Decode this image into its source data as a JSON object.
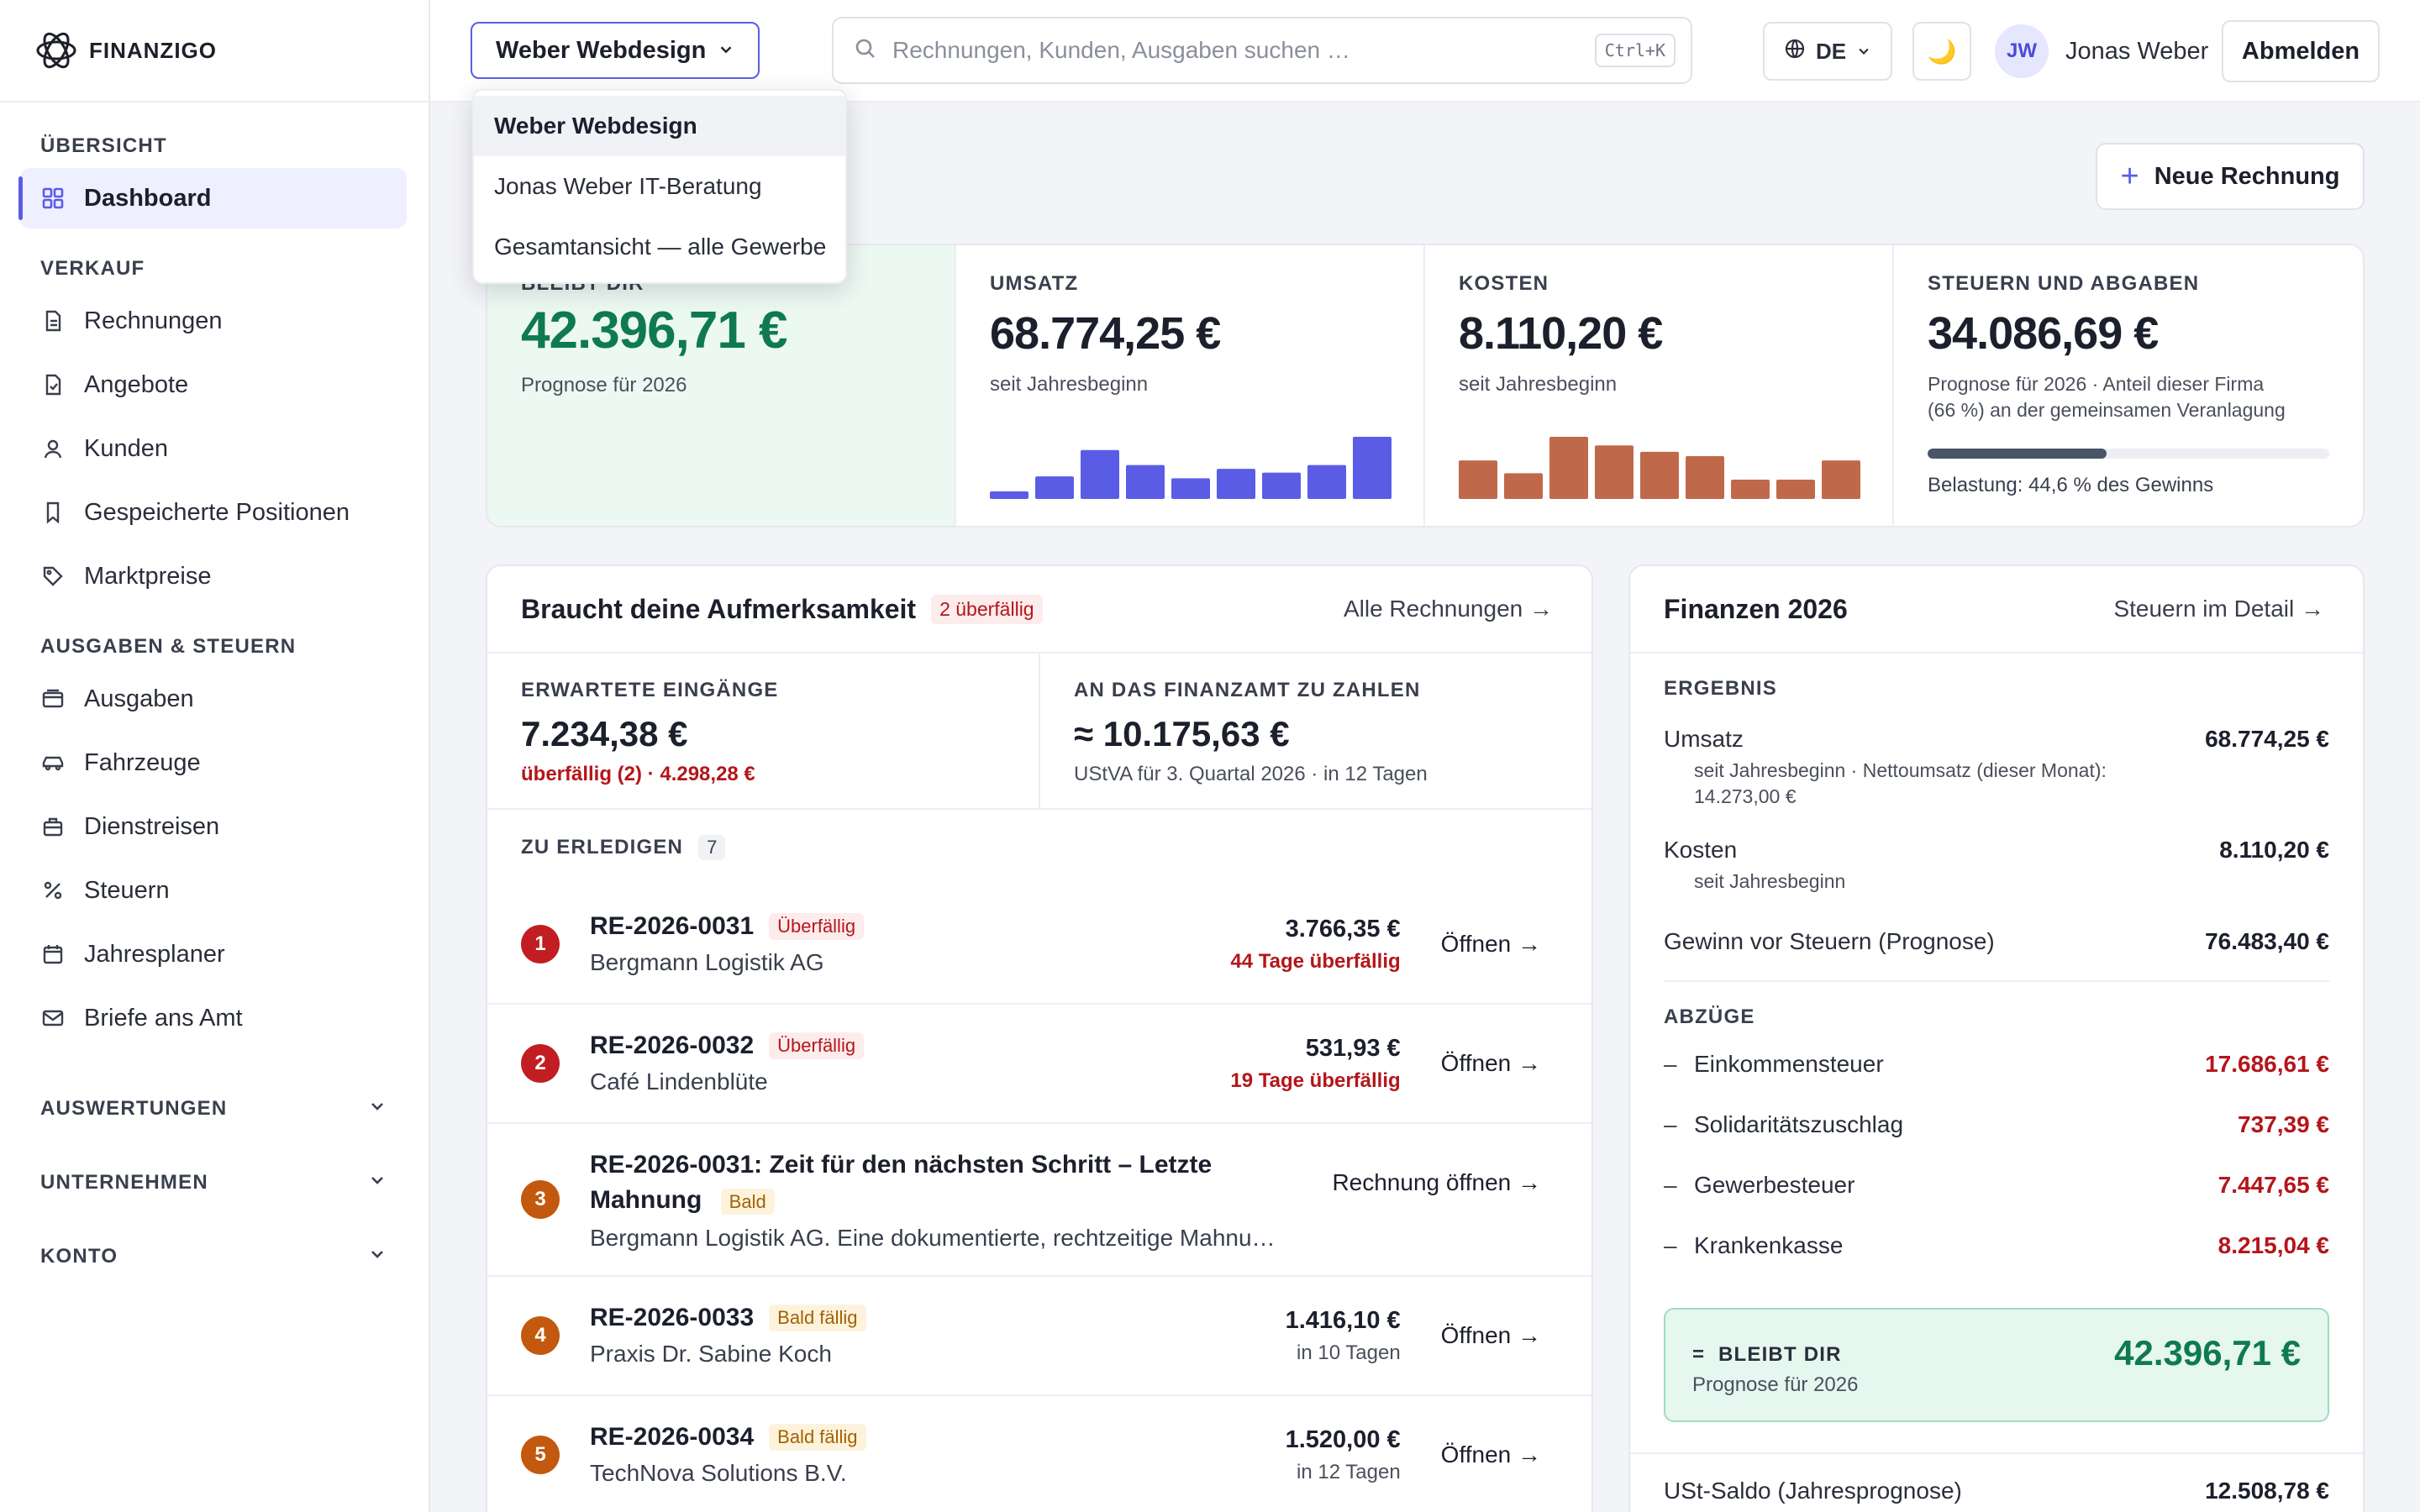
{
  "brand": {
    "name": "FINANZIGO"
  },
  "sidebar": {
    "sections": {
      "overview": "ÜBERSICHT",
      "sales": "VERKAUF",
      "expenses": "AUSGABEN & STEUERN"
    },
    "items": {
      "dashboard": "Dashboard",
      "invoices": "Rechnungen",
      "offers": "Angebote",
      "customers": "Kunden",
      "saved": "Gespeicherte Positionen",
      "market": "Marktpreise",
      "expenses": "Ausgaben",
      "vehicles": "Fahrzeuge",
      "trips": "Dienstreisen",
      "taxes": "Steuern",
      "planner": "Jahresplaner",
      "letters": "Briefe ans Amt"
    },
    "collapsibles": {
      "reports": "AUSWERTUNGEN",
      "company": "UNTERNEHMEN",
      "account": "KONTO"
    }
  },
  "topbar": {
    "company": "Weber Webdesign",
    "search_placeholder": "Rechnungen, Kunden, Ausgaben suchen …",
    "search_shortcut": "Ctrl+K",
    "language": "DE",
    "theme_icon": "🌙",
    "user_initials": "JW",
    "user_name": "Jonas Weber",
    "logout": "Abmelden"
  },
  "company_dropdown": {
    "options": [
      "Weber Webdesign",
      "Jonas Weber IT-Beratung",
      "Gesamtansicht — alle Gewerbe"
    ],
    "selected_index": 0
  },
  "actions": {
    "new_invoice": "Neue Rechnung"
  },
  "kpis": {
    "remaining": {
      "label": "BLEIBT DIR",
      "value": "42.396,71 €",
      "sub": "Prognose für 2026"
    },
    "revenue": {
      "label": "UMSATZ",
      "value": "68.774,25 €",
      "sub": "seit Jahresbeginn"
    },
    "costs": {
      "label": "KOSTEN",
      "value": "8.110,20 €",
      "sub": "seit Jahresbeginn"
    },
    "taxes": {
      "label": "STEUERN UND ABGABEN",
      "value": "34.086,69 €",
      "sub_line1": "Prognose für 2026 · Anteil dieser Firma",
      "sub_line2": "(66 %) an der gemeinsamen Veranlagung",
      "burden_percent": 44.6,
      "burden_text": "Belastung: 44,6 % des Gewinns"
    }
  },
  "chart_data": [
    {
      "type": "bar",
      "title": "",
      "color": "#5b5ce6",
      "values": [
        8,
        24,
        52,
        36,
        22,
        32,
        28,
        36,
        66
      ]
    },
    {
      "type": "bar",
      "title": "",
      "color": "#c0694a",
      "values": [
        36,
        24,
        58,
        50,
        44,
        40,
        18,
        18,
        36
      ]
    }
  ],
  "attention": {
    "title": "Braucht deine Aufmerksamkeit",
    "badge": "2 überfällig",
    "link": "Alle Rechnungen →",
    "expected": {
      "label": "ERWARTETE EINGÄNGE",
      "value": "7.234,38 €",
      "sub": "überfällig (2) · 4.298,28 €"
    },
    "tax_due": {
      "label": "AN DAS FINANZAMT ZU ZAHLEN",
      "value": "≈ 10.175,63 €",
      "sub": "UStVA für 3. Quartal 2026 · in 12 Tagen"
    },
    "todo_label": "ZU ERLEDIGEN",
    "todo_count": "7",
    "tasks": [
      {
        "num": "1",
        "id": "RE-2026-0031",
        "tag": "Überfällig",
        "client": "Bergmann Logistik AG",
        "amount": "3.766,35 €",
        "due": "44 Tage überfällig",
        "action": "Öffnen →"
      },
      {
        "num": "2",
        "id": "RE-2026-0032",
        "tag": "Überfällig",
        "client": "Café Lindenblüte",
        "amount": "531,93 €",
        "due": "19 Tage überfällig",
        "action": "Öffnen →"
      },
      {
        "num": "3",
        "id": "RE-2026-0031: Zeit für den nächsten Schritt – Letzte Mahnung",
        "tag": "Bald",
        "client": "Bergmann Logistik AG. Eine dokumentierte, rechtzeitige Mahnu…",
        "action": "Rechnung öffnen →"
      },
      {
        "num": "4",
        "id": "RE-2026-0033",
        "tag": "Bald fällig",
        "client": "Praxis Dr. Sabine Koch",
        "amount": "1.416,10 €",
        "due": "in 10 Tagen",
        "action": "Öffnen →"
      },
      {
        "num": "5",
        "id": "RE-2026-0034",
        "tag": "Bald fällig",
        "client": "TechNova Solutions B.V.",
        "amount": "1.520,00 €",
        "due": "in 12 Tagen",
        "action": "Öffnen →"
      }
    ]
  },
  "finance": {
    "title": "Finanzen 2026",
    "link": "Steuern im Detail →",
    "result_label": "ERGEBNIS",
    "revenue": {
      "label": "Umsatz",
      "value": "68.774,25 €",
      "note": "seit Jahresbeginn · Nettoumsatz (dieser Monat): 14.273,00 €"
    },
    "costs": {
      "label": "Kosten",
      "value": "8.110,20 €",
      "note": "seit Jahresbeginn"
    },
    "profit": {
      "label": "Gewinn vor Steuern (Prognose)",
      "value": "76.483,40 €"
    },
    "deductions_label": "ABZÜGE",
    "deductions": [
      {
        "label": "Einkommensteuer",
        "value": "17.686,61 €"
      },
      {
        "label": "Solidaritätszuschlag",
        "value": "737,39 €"
      },
      {
        "label": "Gewerbesteuer",
        "value": "7.447,65 €"
      },
      {
        "label": "Krankenkasse",
        "value": "8.215,04 €"
      }
    ],
    "dash": "–",
    "remaining": {
      "prefix": "=",
      "label": "BLEIBT DIR",
      "sub": "Prognose für 2026",
      "value": "42.396,71 €"
    },
    "vat": {
      "label": "USt-Saldo (Jahresprognose)",
      "value": "12.508,78 €"
    }
  }
}
